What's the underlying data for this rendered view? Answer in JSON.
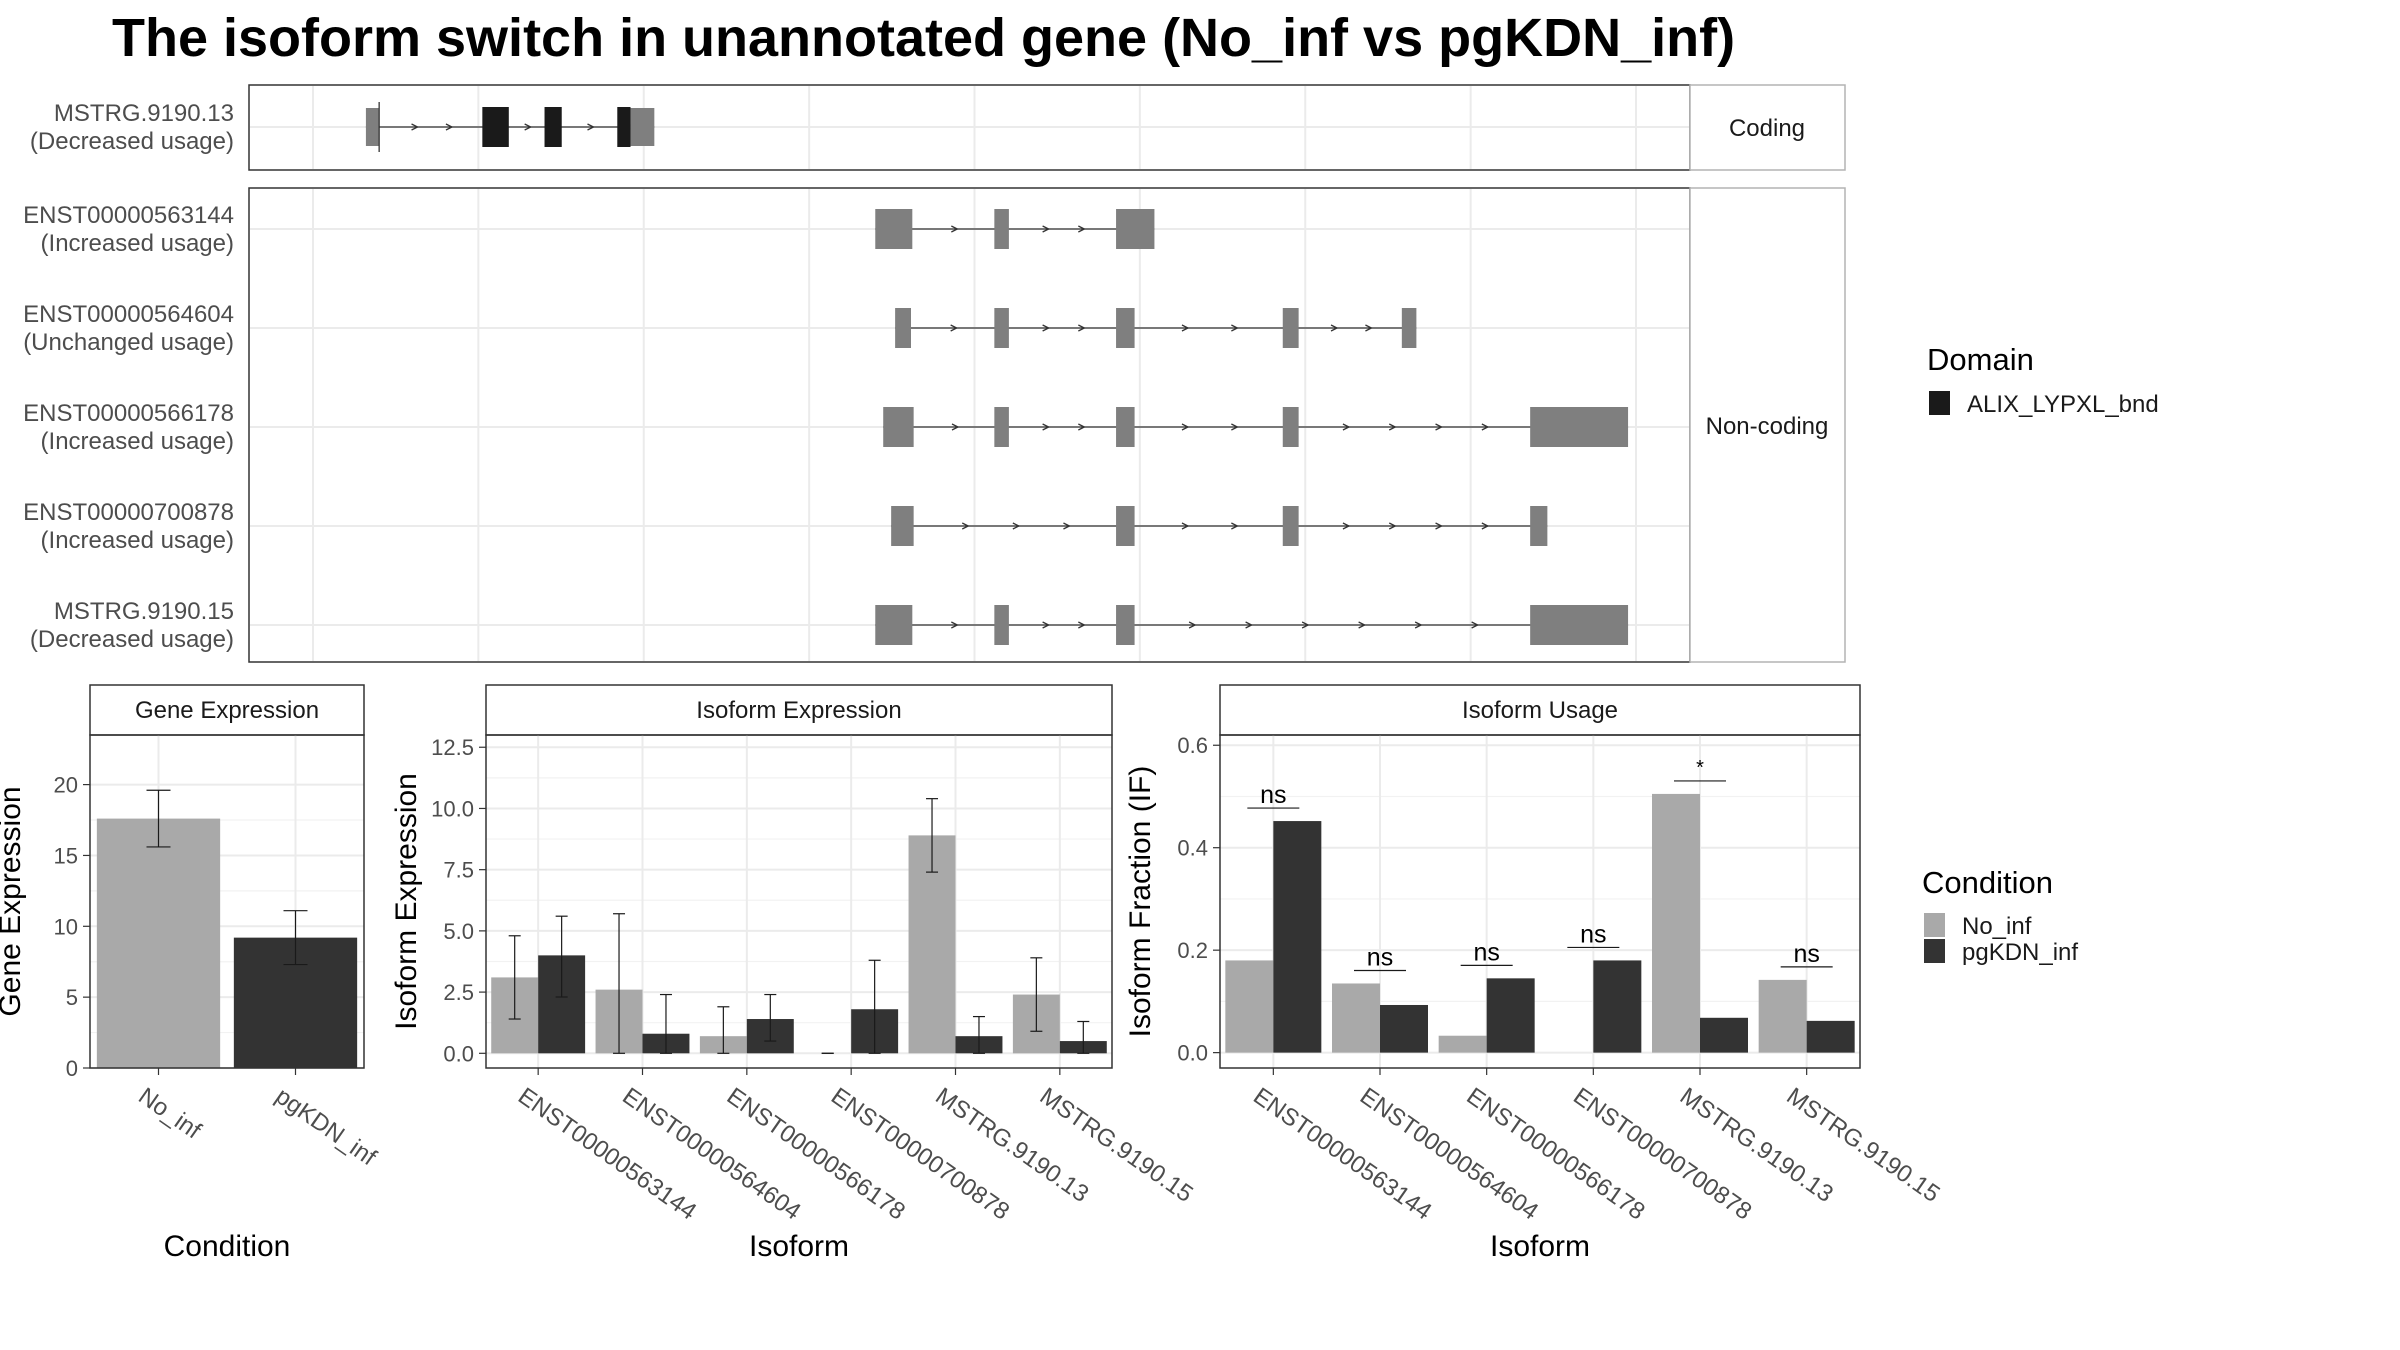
{
  "title": "The isoform switch in unannotated gene (No_inf vs pgKDN_inf)",
  "structure": {
    "genomic_range": [
      0,
      100
    ],
    "colors": {
      "utr": "#7f7f7f",
      "domain": "#1a1a1a",
      "intron": "#333333"
    },
    "isoforms": [
      {
        "id": "MSTRG.9190.13",
        "usage": "(Decreased usage)",
        "group": "Coding",
        "exons": [
          [
            4.0,
            5.0,
            "utr"
          ],
          [
            12.8,
            14.8,
            "domain"
          ],
          [
            17.5,
            18.8,
            "domain"
          ],
          [
            23.0,
            24.0,
            "domain"
          ],
          [
            24.0,
            25.8,
            "utr"
          ]
        ],
        "mark": 5.0
      },
      {
        "id": "ENST00000563144",
        "usage": "(Increased usage)",
        "group": "Non-coding",
        "exons": [
          [
            42.5,
            45.3,
            "utr"
          ],
          [
            51.5,
            52.6,
            "utr"
          ],
          [
            60.7,
            63.6,
            "utr"
          ]
        ]
      },
      {
        "id": "ENST00000564604",
        "usage": "(Unchanged usage)",
        "group": "Non-coding",
        "exons": [
          [
            44.0,
            45.2,
            "utr"
          ],
          [
            51.5,
            52.6,
            "utr"
          ],
          [
            60.7,
            62.1,
            "utr"
          ],
          [
            73.3,
            74.5,
            "utr"
          ],
          [
            82.3,
            83.4,
            "utr"
          ]
        ]
      },
      {
        "id": "ENST00000566178",
        "usage": "(Increased usage)",
        "group": "Non-coding",
        "exons": [
          [
            43.1,
            45.4,
            "utr"
          ],
          [
            51.5,
            52.6,
            "utr"
          ],
          [
            60.7,
            62.1,
            "utr"
          ],
          [
            73.3,
            74.5,
            "utr"
          ],
          [
            92.0,
            99.4,
            "utr"
          ]
        ]
      },
      {
        "id": "ENST00000700878",
        "usage": "(Increased usage)",
        "group": "Non-coding",
        "exons": [
          [
            43.7,
            45.4,
            "utr"
          ],
          [
            60.7,
            62.1,
            "utr"
          ],
          [
            73.3,
            74.5,
            "utr"
          ],
          [
            92.0,
            93.3,
            "utr"
          ]
        ]
      },
      {
        "id": "MSTRG.9190.15",
        "usage": "(Decreased usage)",
        "group": "Non-coding",
        "exons": [
          [
            42.5,
            45.3,
            "utr"
          ],
          [
            51.5,
            52.6,
            "utr"
          ],
          [
            60.7,
            62.1,
            "utr"
          ],
          [
            92.0,
            99.4,
            "utr"
          ]
        ]
      }
    ],
    "groups": [
      "Coding",
      "Non-coding"
    ]
  },
  "legend_domain": {
    "title": "Domain",
    "items": [
      {
        "label": "ALIX_LYPXL_bnd",
        "color": "#1a1a1a"
      }
    ]
  },
  "legend_condition": {
    "title": "Condition",
    "items": [
      {
        "label": "No_inf",
        "color": "#a9a9a9"
      },
      {
        "label": "pgKDN_inf",
        "color": "#333333"
      }
    ]
  },
  "chart_data": [
    {
      "type": "bar",
      "title": "Gene Expression",
      "xlabel": "Condition",
      "ylabel": "Gene Expression",
      "ylim": [
        0,
        23.5
      ],
      "yticks": [
        0,
        5,
        10,
        15,
        20
      ],
      "ytick_labels": [
        "0",
        "5",
        "10",
        "15",
        "20"
      ],
      "categories": [
        "No_inf",
        "pgKDN_inf"
      ],
      "values": [
        17.6,
        9.2
      ],
      "errors": [
        [
          15.6,
          19.6
        ],
        [
          7.3,
          11.1
        ]
      ],
      "colors": [
        "#a9a9a9",
        "#333333"
      ]
    },
    {
      "type": "bar",
      "title": "Isoform Expression",
      "xlabel": "Isoform",
      "ylabel": "Isoform Expression",
      "ylim": [
        -0.6,
        13.0
      ],
      "yticks": [
        0,
        2.5,
        5,
        7.5,
        10,
        12.5
      ],
      "ytick_labels": [
        "0.0",
        "2.5",
        "5.0",
        "7.5",
        "10.0",
        "12.5"
      ],
      "categories": [
        "ENST00000563144",
        "ENST00000564604",
        "ENST00000566178",
        "ENST00000700878",
        "MSTRG.9190.13",
        "MSTRG.9190.15"
      ],
      "series": [
        {
          "name": "No_inf",
          "values": [
            3.1,
            2.6,
            0.7,
            0.0,
            8.9,
            2.4
          ],
          "errors": [
            [
              1.4,
              4.8
            ],
            [
              0.0,
              5.7
            ],
            [
              0.0,
              1.9
            ],
            [
              0.0,
              0.0
            ],
            [
              7.4,
              10.4
            ],
            [
              0.9,
              3.9
            ]
          ]
        },
        {
          "name": "pgKDN_inf",
          "values": [
            4.0,
            0.8,
            1.4,
            1.8,
            0.7,
            0.5
          ],
          "errors": [
            [
              2.3,
              5.6
            ],
            [
              0.0,
              2.4
            ],
            [
              0.5,
              2.4
            ],
            [
              0.0,
              3.8
            ],
            [
              0.0,
              1.5
            ],
            [
              0.0,
              1.3
            ]
          ]
        }
      ]
    },
    {
      "type": "bar",
      "title": "Isoform Usage",
      "xlabel": "Isoform",
      "ylabel": "Isoform Fraction (IF)",
      "ylim": [
        -0.03,
        0.62
      ],
      "yticks": [
        0,
        0.2,
        0.4,
        0.6
      ],
      "ytick_labels": [
        "0.0",
        "0.2",
        "0.4",
        "0.6"
      ],
      "categories": [
        "ENST00000563144",
        "ENST00000564604",
        "ENST00000566178",
        "ENST00000700878",
        "MSTRG.9190.13",
        "MSTRG.9190.15"
      ],
      "series": [
        {
          "name": "No_inf",
          "values": [
            0.18,
            0.135,
            0.033,
            0.0,
            0.505,
            0.142
          ]
        },
        {
          "name": "pgKDN_inf",
          "values": [
            0.452,
            0.093,
            0.145,
            0.18,
            0.068,
            0.062
          ]
        }
      ],
      "annotations": [
        "ns",
        "ns",
        "ns",
        "ns",
        "*",
        "ns"
      ]
    }
  ]
}
